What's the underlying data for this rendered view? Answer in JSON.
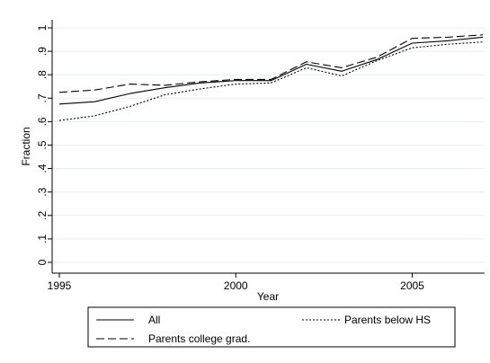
{
  "chart_data": {
    "type": "line",
    "xlabel": "Year",
    "ylabel": "Fraction",
    "xlim": [
      1995,
      2007
    ],
    "ylim": [
      0,
      1
    ],
    "x_ticks": [
      1995,
      2000,
      2005
    ],
    "y_ticks": [
      0,
      0.1,
      0.2,
      0.3,
      0.4,
      0.5,
      0.6,
      0.7,
      0.8,
      0.9,
      1
    ],
    "y_tick_labels": [
      "0",
      ".1",
      ".2",
      ".3",
      ".4",
      ".5",
      ".6",
      ".7",
      ".8",
      ".9",
      "1"
    ],
    "grid": "horizontal",
    "legend_position": "bottom",
    "x": [
      1995,
      1996,
      1997,
      1998,
      1999,
      2000,
      2001,
      2002,
      2003,
      2004,
      2005,
      2006,
      2007
    ],
    "series": [
      {
        "name": "All",
        "line_style": "solid",
        "values": [
          0.675,
          0.685,
          0.72,
          0.745,
          0.765,
          0.775,
          0.775,
          0.845,
          0.815,
          0.865,
          0.935,
          0.945,
          0.96
        ]
      },
      {
        "name": "Parents below HS",
        "line_style": "dotted",
        "values": [
          0.605,
          0.625,
          0.665,
          0.715,
          0.74,
          0.76,
          0.765,
          0.83,
          0.795,
          0.86,
          0.915,
          0.93,
          0.94
        ]
      },
      {
        "name": "Parents college grad.",
        "line_style": "dashed",
        "values": [
          0.725,
          0.735,
          0.76,
          0.755,
          0.77,
          0.78,
          0.78,
          0.855,
          0.83,
          0.875,
          0.955,
          0.96,
          0.97
        ]
      }
    ]
  }
}
